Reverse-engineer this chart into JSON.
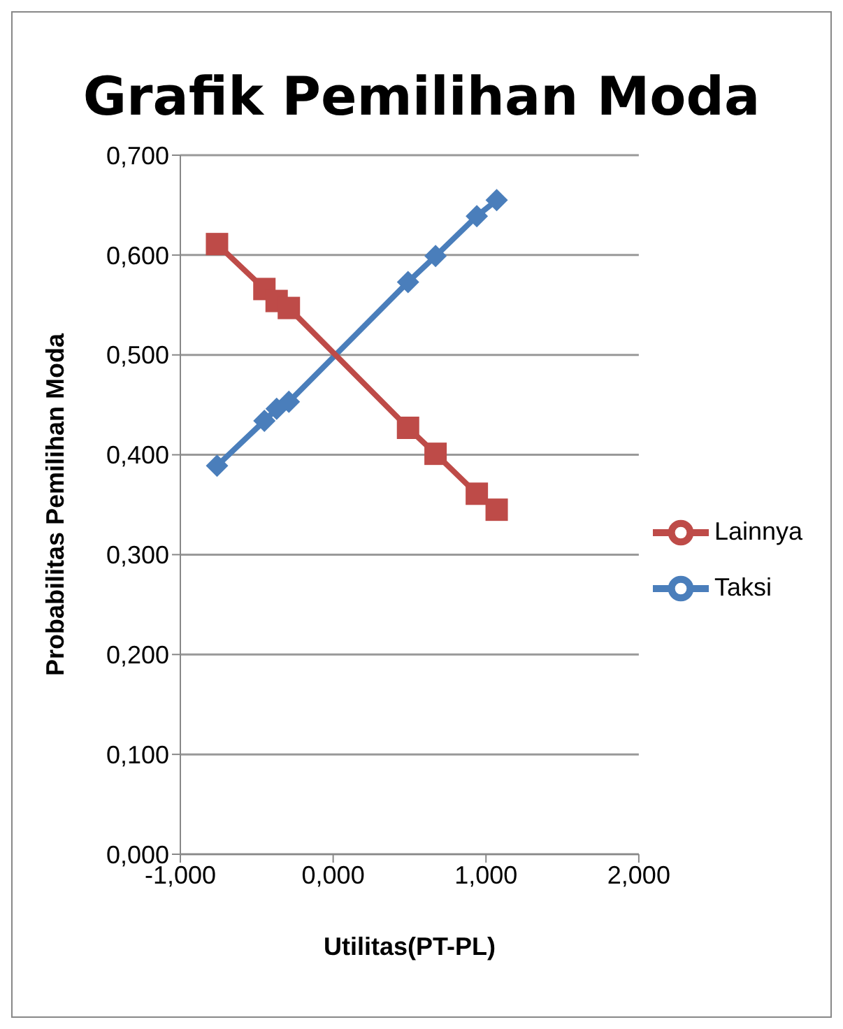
{
  "chart_data": {
    "type": "line",
    "title": "Grafik Pemilihan Moda",
    "xlabel": "Utilitas(PT-PL)",
    "ylabel": "Probabilitas Pemilihan Moda",
    "xlim": [
      -1,
      2
    ],
    "xticks": [
      {
        "value": -1,
        "label": "-1,000"
      },
      {
        "value": 0,
        "label": "0,000"
      },
      {
        "value": 1,
        "label": "1,000"
      },
      {
        "value": 2,
        "label": "2,000"
      }
    ],
    "ylim": [
      0,
      0.7
    ],
    "yticks": [
      {
        "value": 0,
        "label": "0,000"
      },
      {
        "value": 0.1,
        "label": "0,100"
      },
      {
        "value": 0.2,
        "label": "0,200"
      },
      {
        "value": 0.3,
        "label": "0,300"
      },
      {
        "value": 0.4,
        "label": "0,400"
      },
      {
        "value": 0.5,
        "label": "0,500"
      },
      {
        "value": 0.6,
        "label": "0,600"
      },
      {
        "value": 0.7,
        "label": "0,700"
      }
    ],
    "grid": "y",
    "legend": "right",
    "series": [
      {
        "name": "Taksi",
        "color": "#4a7ebb",
        "marker": "diamond",
        "x": [
          -0.76,
          -0.45,
          -0.37,
          -0.29,
          0.49,
          0.67,
          0.94,
          1.07
        ],
        "values": [
          0.389,
          0.434,
          0.446,
          0.453,
          0.573,
          0.599,
          0.639,
          0.655
        ]
      },
      {
        "name": "Lainnya",
        "color": "#be4b48",
        "marker": "square",
        "x": [
          -0.76,
          -0.45,
          -0.37,
          -0.29,
          0.49,
          0.67,
          0.94,
          1.07
        ],
        "values": [
          0.611,
          0.566,
          0.554,
          0.547,
          0.427,
          0.401,
          0.361,
          0.345
        ]
      }
    ]
  }
}
